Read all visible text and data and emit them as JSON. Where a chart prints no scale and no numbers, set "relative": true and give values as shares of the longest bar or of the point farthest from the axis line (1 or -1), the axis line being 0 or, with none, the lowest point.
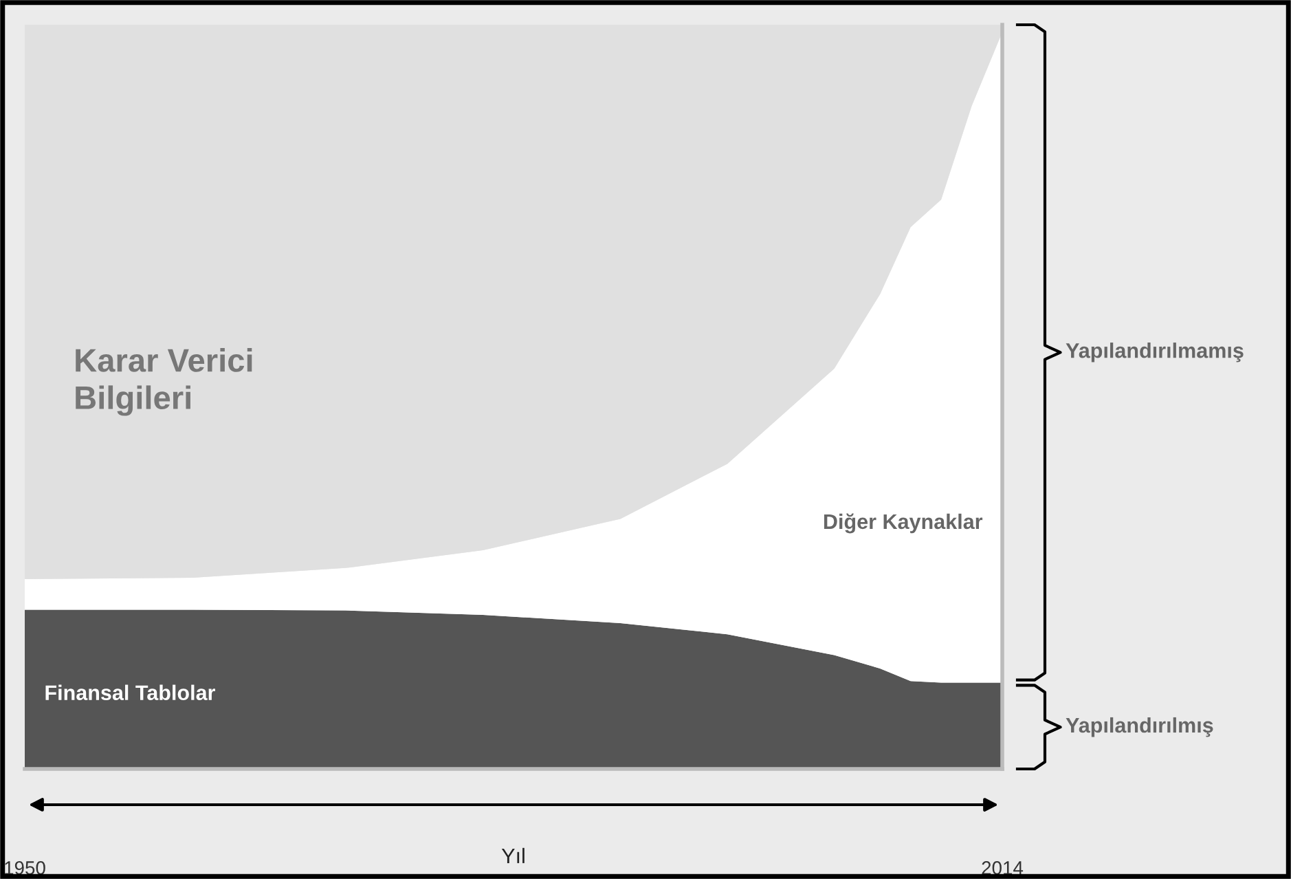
{
  "chart_data": {
    "type": "area",
    "stacked": true,
    "relative": true,
    "x": [
      1950,
      1961,
      1971,
      1980,
      1989,
      1996,
      2003,
      2006,
      2008,
      2010,
      2012,
      2014
    ],
    "xlim": [
      1950,
      2014
    ],
    "xticks": [
      1950,
      2014
    ],
    "xlabel": "Yıl",
    "series": [
      {
        "name": "Finansal Tablolar",
        "color": "#555555",
        "values": [
          0.214,
          0.214,
          0.213,
          0.207,
          0.196,
          0.181,
          0.153,
          0.135,
          0.118,
          0.116,
          0.116,
          0.116
        ]
      },
      {
        "name": "Diğer Kaynaklar",
        "color": "#ffffff",
        "values": [
          0.041,
          0.043,
          0.057,
          0.087,
          0.14,
          0.229,
          0.385,
          0.503,
          0.61,
          0.649,
          0.775,
          0.874
        ]
      },
      {
        "name": "Karar Verici\nBilgileri",
        "color": "#e0e0e0",
        "values": [
          0.745,
          0.743,
          0.73,
          0.706,
          0.664,
          0.59,
          0.462,
          0.362,
          0.272,
          0.235,
          0.109,
          0.01
        ]
      }
    ],
    "annotations": [
      "Yapılandırılmamış",
      "Yapılandırılmış"
    ],
    "grid": false,
    "legend": false
  }
}
